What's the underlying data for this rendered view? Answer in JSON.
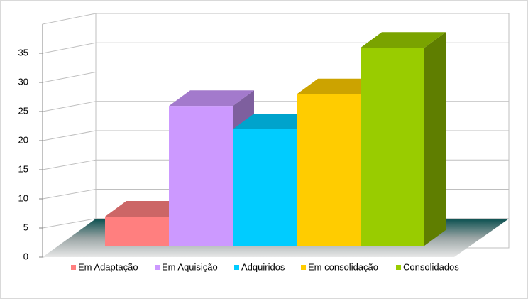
{
  "chart_data": {
    "type": "bar3d",
    "series": [
      {
        "name": "Em Adaptação",
        "color": "#ff7f7f",
        "values": [
          5
        ]
      },
      {
        "name": "Em Aquisição",
        "color": "#cc99ff",
        "values": [
          24
        ]
      },
      {
        "name": "Adquiridos",
        "color": "#00ccff",
        "values": [
          20
        ]
      },
      {
        "name": "Em consolidação",
        "color": "#ffcc00",
        "values": [
          26
        ]
      },
      {
        "name": "Consolidados",
        "color": "#99cc00",
        "values": [
          34
        ]
      }
    ],
    "ylim": [
      0,
      40
    ],
    "yticks": [
      0,
      5,
      10,
      15,
      20,
      25,
      30,
      35
    ],
    "grid": true,
    "legend": "bottom"
  }
}
